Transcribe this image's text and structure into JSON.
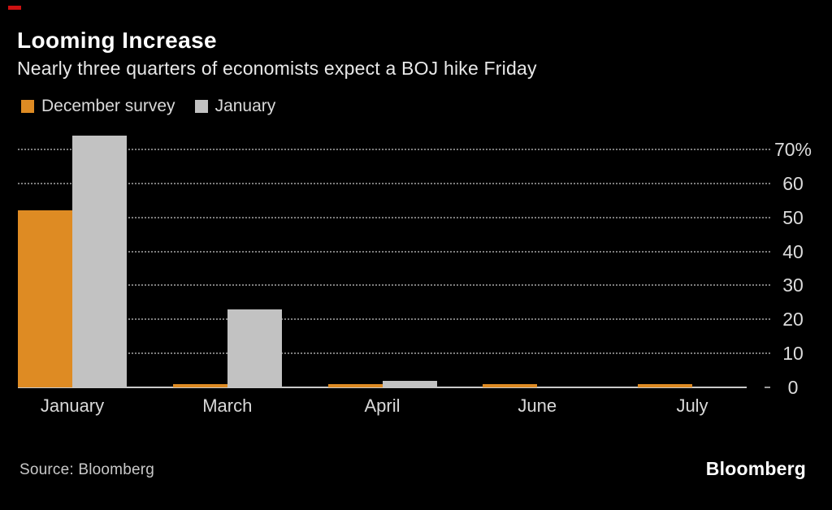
{
  "header": {
    "title": "Looming Increase",
    "subtitle": "Nearly three quarters of economists expect a BOJ hike Friday"
  },
  "chart_data": {
    "type": "bar",
    "categories": [
      "January",
      "March",
      "April",
      "June",
      "July"
    ],
    "series": [
      {
        "name": "December survey",
        "color": "#de8b23",
        "values": [
          52,
          1,
          1,
          1,
          1
        ]
      },
      {
        "name": "January",
        "color": "#c2c2c2",
        "values": [
          74,
          23,
          2,
          0,
          0
        ]
      }
    ],
    "title": "Looming Increase",
    "subtitle": "Nearly three quarters of economists expect a BOJ hike Friday",
    "xlabel": "",
    "ylabel": "",
    "y_ticks": [
      0,
      10,
      20,
      30,
      40,
      50,
      60,
      70
    ],
    "y_tick_labels": [
      "0",
      "10",
      "20",
      "30",
      "40",
      "50",
      "60",
      "70%"
    ],
    "ylim": [
      0,
      75.7
    ],
    "grid": "horizontal-dotted",
    "tick_label_side": "right",
    "legend_position": "top-left",
    "background_color": "#000000"
  },
  "footer": {
    "source": "Source: Bloomberg",
    "logo": "Bloomberg"
  }
}
